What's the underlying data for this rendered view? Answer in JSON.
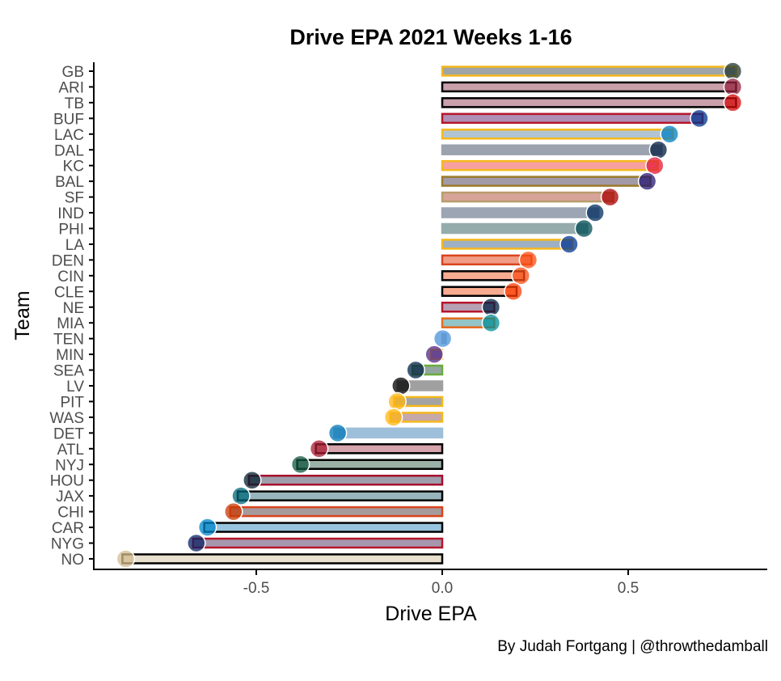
{
  "chart_data": {
    "type": "bar",
    "orientation": "horizontal",
    "title": "Drive EPA 2021 Weeks 1-16",
    "xlabel": "Drive EPA",
    "ylabel": "Team",
    "caption": "By Judah Fortgang | @throwthedamball",
    "xlim": [
      -0.92,
      0.88
    ],
    "xticks": [
      -0.5,
      0.0,
      0.5
    ],
    "xtick_labels": [
      "-0.5",
      "0.0",
      "0.5"
    ],
    "grid": false,
    "legend": "none",
    "categories": [
      "GB",
      "ARI",
      "TB",
      "BUF",
      "LAC",
      "DAL",
      "KC",
      "BAL",
      "SF",
      "IND",
      "PHI",
      "LA",
      "DEN",
      "CIN",
      "CLE",
      "NE",
      "MIA",
      "TEN",
      "MIN",
      "SEA",
      "LV",
      "PIT",
      "WAS",
      "DET",
      "ATL",
      "NYJ",
      "HOU",
      "JAX",
      "CHI",
      "CAR",
      "NYG",
      "NO"
    ],
    "values": [
      0.79,
      0.79,
      0.79,
      0.7,
      0.62,
      0.59,
      0.58,
      0.56,
      0.46,
      0.42,
      0.39,
      0.35,
      0.24,
      0.22,
      0.2,
      0.14,
      0.14,
      0.01,
      -0.03,
      -0.08,
      -0.12,
      -0.13,
      -0.14,
      -0.29,
      -0.34,
      -0.39,
      -0.52,
      -0.55,
      -0.57,
      -0.64,
      -0.67,
      -0.86
    ],
    "fill_colors": [
      "#9fa5a6",
      "#c9a0ac",
      "#c9a0ac",
      "#ae8fb5",
      "#b0c4d4",
      "#9aa3ae",
      "#f7a0a0",
      "#a39aa8",
      "#d7a499",
      "#9ba5b3",
      "#95acac",
      "#9fb0c4",
      "#f09c87",
      "#f7ab91",
      "#f7ab91",
      "#b6a0b4",
      "#93c4c6",
      "#9fb8c8",
      "#b0a7bf",
      "#93a69f",
      "#a0a0a0",
      "#a3a3a3",
      "#c6a8a8",
      "#9ebfda",
      "#d6a4ac",
      "#9bb0a6",
      "#9e9eac",
      "#98b4bc",
      "#a69a9c",
      "#98c4df",
      "#a697ad",
      "#e8dfcd"
    ],
    "stroke_colors": [
      "#f5b81c",
      "#000000",
      "#000000",
      "#b5172b",
      "#f5b81c",
      "#9aa3ae",
      "#f5b81c",
      "#9b7b2b",
      "#b89d6d",
      "#9ba5b3",
      "#95acac",
      "#f5b81c",
      "#d9441c",
      "#000000",
      "#000000",
      "#b5172b",
      "#e56a1c",
      "#9fb8c8",
      "#f5b81c",
      "#6aac3c",
      "#a0a0a0",
      "#f5b81c",
      "#f5b81c",
      "#9ebfda",
      "#000000",
      "#000000",
      "#a50d2b",
      "#000000",
      "#d9441c",
      "#000000",
      "#b5172b",
      "#000000"
    ],
    "logo_colors": [
      "#203731",
      "#97233f",
      "#d50a0a",
      "#00338d",
      "#0080c6",
      "#041e42",
      "#e31837",
      "#241773",
      "#aa0000",
      "#002c5f",
      "#004c54",
      "#003594",
      "#fb4f14",
      "#fb4f14",
      "#ff3c00",
      "#002244",
      "#008e97",
      "#4b92db",
      "#4f2683",
      "#002244",
      "#000000",
      "#ffb612",
      "#ffb612",
      "#0076b6",
      "#a71930",
      "#125740",
      "#03202f",
      "#006778",
      "#c83803",
      "#0085ca",
      "#0b2265",
      "#d3bc8d"
    ],
    "logo_names": [
      "gb-logo",
      "ari-logo",
      "tb-logo",
      "buf-logo",
      "lac-logo",
      "dal-logo",
      "kc-logo",
      "bal-logo",
      "sf-logo",
      "ind-logo",
      "phi-logo",
      "la-logo",
      "den-logo",
      "cin-logo",
      "cle-logo",
      "ne-logo",
      "mia-logo",
      "ten-logo",
      "min-logo",
      "sea-logo",
      "lv-logo",
      "pit-logo",
      "was-logo",
      "det-logo",
      "atl-logo",
      "nyj-logo",
      "hou-logo",
      "jax-logo",
      "chi-logo",
      "car-logo",
      "nyg-logo",
      "no-logo"
    ]
  }
}
